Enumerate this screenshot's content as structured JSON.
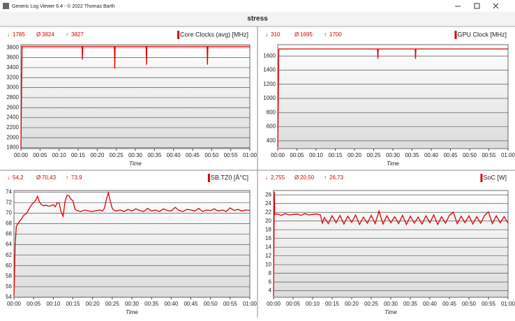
{
  "window": {
    "title": "Generic Log Viewer 6.4 - © 2022 Thomas Barth",
    "heading": "stress"
  },
  "stat_symbols": [
    "↓",
    "Ø",
    "↑"
  ],
  "chart_data": [
    {
      "type": "line",
      "title": "Core Clocks (avg) [MHz]",
      "stats": [
        1785,
        3824,
        3827
      ],
      "xlabel": "Time",
      "color": "#e00000",
      "grid": true,
      "xlim": [
        0,
        60
      ],
      "xticks": [
        {
          "value": 0,
          "label": "00:00"
        },
        {
          "value": 5,
          "label": "00:05"
        },
        {
          "value": 10,
          "label": "00:10"
        },
        {
          "value": 15,
          "label": "00:15"
        },
        {
          "value": 20,
          "label": "00:20"
        },
        {
          "value": 25,
          "label": "00:25"
        },
        {
          "value": 30,
          "label": "00:30"
        },
        {
          "value": 35,
          "label": "00:35"
        },
        {
          "value": 40,
          "label": "00:40"
        },
        {
          "value": 45,
          "label": "00:45"
        },
        {
          "value": 50,
          "label": "00:50"
        },
        {
          "value": 55,
          "label": "00:55"
        },
        {
          "value": 60,
          "label": "01:00"
        }
      ],
      "ylim": [
        1780,
        3860
      ],
      "yticks": [
        1800,
        2000,
        2200,
        2400,
        2600,
        2800,
        3000,
        3200,
        3400,
        3600,
        3800
      ],
      "x": [
        0,
        0.3,
        16,
        16.1,
        16.2,
        24.5,
        24.6,
        24.7,
        32.8,
        32.9,
        33,
        48.8,
        48.9,
        49,
        60
      ],
      "values": [
        1785,
        3827,
        3827,
        3560,
        3827,
        3827,
        3380,
        3827,
        3827,
        3460,
        3827,
        3827,
        3460,
        3827,
        3827
      ]
    },
    {
      "type": "line",
      "title": "GPU Clock [MHz]",
      "stats": [
        310,
        1695,
        1700
      ],
      "xlabel": "Time",
      "color": "#e00000",
      "grid": true,
      "xlim": [
        0,
        60
      ],
      "xticks": [
        {
          "value": 0,
          "label": "00:00"
        },
        {
          "value": 5,
          "label": "00:05"
        },
        {
          "value": 10,
          "label": "00:10"
        },
        {
          "value": 15,
          "label": "00:15"
        },
        {
          "value": 20,
          "label": "00:20"
        },
        {
          "value": 25,
          "label": "00:25"
        },
        {
          "value": 30,
          "label": "00:30"
        },
        {
          "value": 35,
          "label": "00:35"
        },
        {
          "value": 40,
          "label": "00:40"
        },
        {
          "value": 45,
          "label": "00:45"
        },
        {
          "value": 50,
          "label": "00:50"
        },
        {
          "value": 55,
          "label": "00:55"
        },
        {
          "value": 60,
          "label": "01:00"
        }
      ],
      "ylim": [
        290,
        1760
      ],
      "yticks": [
        400,
        600,
        800,
        1000,
        1200,
        1400,
        1600
      ],
      "x": [
        0,
        0.3,
        26,
        26.1,
        26.2,
        35.8,
        35.9,
        36,
        60
      ],
      "values": [
        310,
        1700,
        1700,
        1560,
        1700,
        1700,
        1560,
        1700,
        1700
      ]
    },
    {
      "type": "line",
      "title": "SB.TZ0 [Å°C]",
      "stats": [
        {
          "value": 54.2,
          "label": "54,2"
        },
        {
          "value": 70.43,
          "label": "70,43"
        },
        {
          "value": 73.9,
          "label": "73,9"
        }
      ],
      "xlabel": "Time",
      "color": "#e00000",
      "grid": true,
      "xlim": [
        0,
        60
      ],
      "xticks": [
        {
          "value": 0,
          "label": "00:00"
        },
        {
          "value": 5,
          "label": "00:05"
        },
        {
          "value": 10,
          "label": "00:10"
        },
        {
          "value": 15,
          "label": "00:15"
        },
        {
          "value": 20,
          "label": "00:20"
        },
        {
          "value": 25,
          "label": "00:25"
        },
        {
          "value": 30,
          "label": "00:30"
        },
        {
          "value": 35,
          "label": "00:35"
        },
        {
          "value": 40,
          "label": "00:40"
        },
        {
          "value": 45,
          "label": "00:45"
        },
        {
          "value": 50,
          "label": "00:50"
        },
        {
          "value": 55,
          "label": "00:55"
        },
        {
          "value": 60,
          "label": "01:00"
        }
      ],
      "ylim": [
        54,
        74.3
      ],
      "yticks": [
        54,
        56,
        58,
        60,
        62,
        64,
        66,
        68,
        70,
        72,
        74
      ],
      "x": [
        0,
        0.3,
        0.6,
        1,
        1.5,
        2,
        2.5,
        3,
        3.5,
        4,
        4.5,
        5,
        5.5,
        6,
        6.5,
        7,
        7.5,
        8,
        9,
        10,
        10.5,
        11,
        11.5,
        12,
        12.5,
        13,
        13.5,
        14,
        14.5,
        15,
        15.5,
        16,
        17,
        18,
        19,
        20,
        21,
        22,
        22.5,
        23,
        23.5,
        24,
        24.5,
        25,
        25.5,
        26,
        27,
        28,
        29,
        30,
        31,
        32,
        33,
        34,
        35,
        36,
        37,
        38,
        39,
        40,
        41,
        42,
        43,
        44,
        45,
        46,
        47,
        48,
        49,
        50,
        51,
        52,
        53,
        54,
        55,
        56,
        57,
        58,
        59,
        60
      ],
      "values": [
        54.2,
        64,
        67.5,
        68,
        68.5,
        69,
        69.6,
        69.8,
        70.3,
        71,
        71.6,
        72,
        72.4,
        73.2,
        72.1,
        71.6,
        71.4,
        71.5,
        71.3,
        71.6,
        71.2,
        72,
        71.9,
        70.2,
        69.4,
        72.2,
        73.4,
        73.3,
        72.6,
        72.4,
        70.8,
        70.5,
        70.3,
        70.6,
        70.4,
        70.3,
        70.5,
        70.6,
        70.4,
        70.9,
        72.6,
        73.9,
        72.3,
        70.9,
        70.5,
        70.4,
        70.6,
        70.3,
        70.7,
        70.4,
        70.8,
        70.5,
        70.3,
        70.9,
        70.4,
        70.6,
        70.3,
        70.8,
        70.5,
        70.4,
        71.1,
        70.5,
        70.3,
        70.7,
        70.6,
        70.4,
        70.9,
        70.3,
        70.6,
        70.5,
        70.8,
        70.4,
        70.6,
        70.3,
        71,
        70.5,
        70.7,
        70.4,
        70.6,
        70.5
      ]
    },
    {
      "type": "line",
      "title": "SoC [W]",
      "stats": [
        {
          "value": 2.755,
          "label": "2,755"
        },
        {
          "value": 20.5,
          "label": "20,50"
        },
        {
          "value": 26.73,
          "label": "26,73"
        }
      ],
      "xlabel": "Time",
      "color": "#e00000",
      "grid": true,
      "xlim": [
        0,
        60
      ],
      "xticks": [
        {
          "value": 0,
          "label": "00:00"
        },
        {
          "value": 5,
          "label": "00:05"
        },
        {
          "value": 10,
          "label": "00:10"
        },
        {
          "value": 15,
          "label": "00:15"
        },
        {
          "value": 20,
          "label": "00:20"
        },
        {
          "value": 25,
          "label": "00:25"
        },
        {
          "value": 30,
          "label": "00:30"
        },
        {
          "value": 35,
          "label": "00:35"
        },
        {
          "value": 40,
          "label": "00:40"
        },
        {
          "value": 45,
          "label": "00:45"
        },
        {
          "value": 50,
          "label": "00:50"
        },
        {
          "value": 55,
          "label": "00:55"
        },
        {
          "value": 60,
          "label": "01:00"
        }
      ],
      "ylim": [
        2.5,
        27
      ],
      "yticks": [
        4,
        6,
        8,
        10,
        12,
        14,
        16,
        18,
        20,
        22,
        24,
        26
      ],
      "x": [
        0,
        0.2,
        0.3,
        1,
        2,
        3,
        4,
        5,
        6,
        7,
        8,
        9,
        10,
        11,
        12,
        12.5,
        13,
        14,
        15,
        16,
        17,
        18,
        19,
        20,
        21,
        22,
        23,
        24,
        25,
        26,
        27,
        28,
        29,
        30,
        31,
        32,
        33,
        34,
        35,
        36,
        37,
        38,
        39,
        40,
        41,
        42,
        43,
        44,
        45,
        46,
        47,
        48,
        49,
        50,
        51,
        52,
        53,
        54,
        55,
        56,
        57,
        58,
        59,
        60
      ],
      "values": [
        2.755,
        26.73,
        21.5,
        21.6,
        21.3,
        21.7,
        21.4,
        21.5,
        21.6,
        21.3,
        21.7,
        21.4,
        21.5,
        21.6,
        21.4,
        19.5,
        20.8,
        19.4,
        21.2,
        19.6,
        21.3,
        19.3,
        21.1,
        19.7,
        21.4,
        19.2,
        20.9,
        19.5,
        21.3,
        19.4,
        22.3,
        19.3,
        21.2,
        19.6,
        21,
        19.4,
        21.3,
        19.2,
        21.1,
        19.5,
        20.9,
        19.3,
        21.2,
        19.6,
        21.4,
        19.2,
        21,
        19.5,
        21.3,
        22,
        19.4,
        21.1,
        19.6,
        21.2,
        19.3,
        21,
        19.5,
        21.3,
        22.1,
        19.4,
        21.2,
        19.6,
        21,
        19.5
      ]
    }
  ]
}
